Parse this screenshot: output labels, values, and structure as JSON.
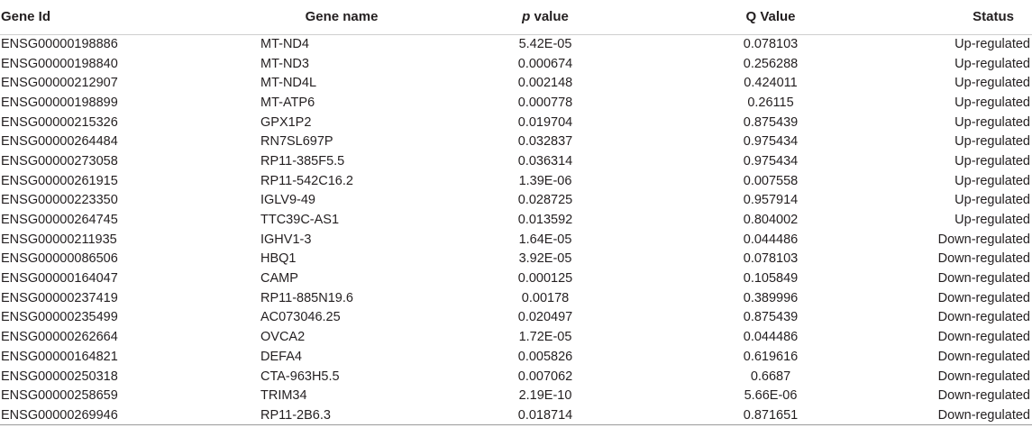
{
  "table": {
    "headers": {
      "gene_id": "Gene Id",
      "gene_name": "Gene name",
      "p_value_italic": "p",
      "p_value_rest": " value",
      "q_value": "Q Value",
      "status": "Status"
    },
    "rows": [
      {
        "gene_id": "ENSG00000198886",
        "gene_name": "MT-ND4",
        "p_value": "5.42E-05",
        "q_value": "0.078103",
        "status": "Up-regulated"
      },
      {
        "gene_id": "ENSG00000198840",
        "gene_name": "MT-ND3",
        "p_value": "0.000674",
        "q_value": "0.256288",
        "status": "Up-regulated"
      },
      {
        "gene_id": "ENSG00000212907",
        "gene_name": "MT-ND4L",
        "p_value": "0.002148",
        "q_value": "0.424011",
        "status": "Up-regulated"
      },
      {
        "gene_id": "ENSG00000198899",
        "gene_name": "MT-ATP6",
        "p_value": "0.000778",
        "q_value": "0.26115",
        "status": "Up-regulated"
      },
      {
        "gene_id": "ENSG00000215326",
        "gene_name": "GPX1P2",
        "p_value": "0.019704",
        "q_value": "0.875439",
        "status": "Up-regulated"
      },
      {
        "gene_id": "ENSG00000264484",
        "gene_name": "RN7SL697P",
        "p_value": "0.032837",
        "q_value": "0.975434",
        "status": "Up-regulated"
      },
      {
        "gene_id": "ENSG00000273058",
        "gene_name": "RP11-385F5.5",
        "p_value": "0.036314",
        "q_value": "0.975434",
        "status": "Up-regulated"
      },
      {
        "gene_id": "ENSG00000261915",
        "gene_name": "RP11-542C16.2",
        "p_value": "1.39E-06",
        "q_value": "0.007558",
        "status": "Up-regulated"
      },
      {
        "gene_id": "ENSG00000223350",
        "gene_name": "IGLV9-49",
        "p_value": "0.028725",
        "q_value": "0.957914",
        "status": "Up-regulated"
      },
      {
        "gene_id": "ENSG00000264745",
        "gene_name": "TTC39C-AS1",
        "p_value": "0.013592",
        "q_value": "0.804002",
        "status": "Up-regulated"
      },
      {
        "gene_id": "ENSG00000211935",
        "gene_name": "IGHV1-3",
        "p_value": "1.64E-05",
        "q_value": "0.044486",
        "status": "Down-regulated"
      },
      {
        "gene_id": "ENSG00000086506",
        "gene_name": "HBQ1",
        "p_value": "3.92E-05",
        "q_value": "0.078103",
        "status": "Down-regulated"
      },
      {
        "gene_id": "ENSG00000164047",
        "gene_name": "CAMP",
        "p_value": "0.000125",
        "q_value": "0.105849",
        "status": "Down-regulated"
      },
      {
        "gene_id": "ENSG00000237419",
        "gene_name": "RP11-885N19.6",
        "p_value": "0.00178",
        "q_value": "0.389996",
        "status": "Down-regulated"
      },
      {
        "gene_id": "ENSG00000235499",
        "gene_name": "AC073046.25",
        "p_value": "0.020497",
        "q_value": "0.875439",
        "status": "Down-regulated"
      },
      {
        "gene_id": "ENSG00000262664",
        "gene_name": "OVCA2",
        "p_value": "1.72E-05",
        "q_value": "0.044486",
        "status": "Down-regulated"
      },
      {
        "gene_id": "ENSG00000164821",
        "gene_name": "DEFA4",
        "p_value": "0.005826",
        "q_value": "0.619616",
        "status": "Down-regulated"
      },
      {
        "gene_id": "ENSG00000250318",
        "gene_name": "CTA-963H5.5",
        "p_value": "0.007062",
        "q_value": "0.6687",
        "status": "Down-regulated"
      },
      {
        "gene_id": "ENSG00000258659",
        "gene_name": "TRIM34",
        "p_value": "2.19E-10",
        "q_value": "5.66E-06",
        "status": "Down-regulated"
      },
      {
        "gene_id": "ENSG00000269946",
        "gene_name": "RP11-2B6.3",
        "p_value": "0.018714",
        "q_value": "0.871651",
        "status": "Down-regulated"
      }
    ]
  }
}
